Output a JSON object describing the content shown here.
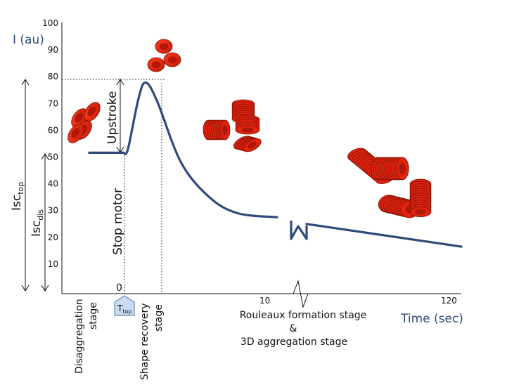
{
  "chart_data": {
    "type": "line",
    "y_axis_label": "I (au)",
    "x_axis_label": "Time (sec)",
    "y_ticks": [
      "10",
      "20",
      "30",
      "40",
      "50",
      "60",
      "70",
      "80",
      "90",
      "100"
    ],
    "y_zero_label": "0",
    "x_ticks": [
      "10",
      "120"
    ],
    "ylim": [
      0,
      100
    ],
    "series": [
      {
        "name": "I",
        "color": "#2e4a7a",
        "points_before_break": [
          [
            -2.5,
            51.6
          ],
          [
            -0.05,
            51.6
          ],
          [
            0.25,
            53
          ],
          [
            1.0,
            72
          ],
          [
            1.5,
            77.8
          ],
          [
            2.3,
            71
          ],
          [
            4.0,
            48
          ],
          [
            6.0,
            35
          ],
          [
            8.0,
            29
          ],
          [
            10.8,
            27.5
          ]
        ],
        "points_after_break": [
          [
            40,
            25
          ],
          [
            120,
            16.5
          ]
        ]
      }
    ],
    "reference_levels": {
      "top": 78,
      "dis": 51.6
    },
    "annotations": {
      "upstroke": "Upstroke",
      "stop_motor": "Stop motor",
      "isc_top_main": "Isc",
      "isc_top_sub": "top",
      "isc_dis_main": "Isc",
      "isc_dis_sub": "dis",
      "ttop_main": "T",
      "ttop_sub": "top",
      "stage_disaggregation": [
        "Disaggregation",
        "stage"
      ],
      "stage_shape_recovery": [
        "Shape recovery",
        "stage"
      ],
      "stage_rouleaux": [
        "Rouleaux formation stage",
        "&",
        "3D aggregation stage"
      ]
    },
    "colors": {
      "curve": "#2e4a7a",
      "cell": "#e0220f",
      "cell_dark": "#7a1305",
      "ttop_fill": "#c9dcf2"
    }
  }
}
